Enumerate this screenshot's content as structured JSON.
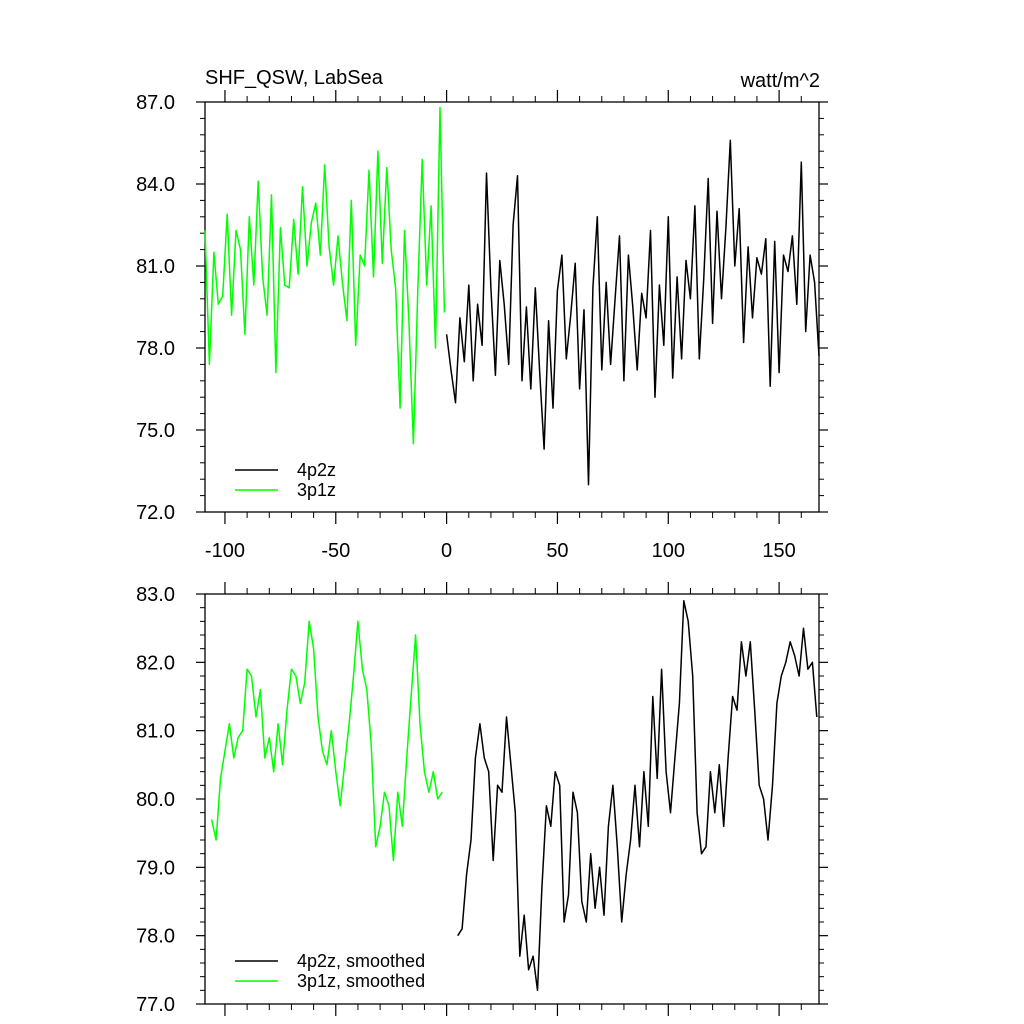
{
  "chart_data": [
    {
      "type": "line",
      "title": "SHF_QSW, LabSea",
      "units": "watt/m^2",
      "xlim": [
        -109,
        168
      ],
      "ylim": [
        72.0,
        87.0
      ],
      "xticks": [
        -100,
        -50,
        0,
        50,
        100,
        150
      ],
      "xtick_labels": [
        "-100",
        "-50",
        "0",
        "50",
        "100",
        "150"
      ],
      "yticks": [
        72,
        75,
        78,
        81,
        84,
        87
      ],
      "ytick_labels": [
        "72.0",
        "75.0",
        "78.0",
        "81.0",
        "84.0",
        "87.0"
      ],
      "grid": false,
      "legend_position": "bottom-left",
      "series": [
        {
          "name": "4p2z",
          "color": "#000000",
          "x": [
            0,
            2,
            4,
            6,
            8,
            10,
            12,
            14,
            16,
            18,
            20,
            22,
            24,
            26,
            28,
            30,
            32,
            34,
            36,
            38,
            40,
            42,
            44,
            46,
            48,
            50,
            52,
            54,
            56,
            58,
            60,
            62,
            64,
            66,
            68,
            70,
            72,
            74,
            76,
            78,
            80,
            82,
            84,
            86,
            88,
            90,
            92,
            94,
            96,
            98,
            100,
            102,
            104,
            106,
            108,
            110,
            112,
            114,
            116,
            118,
            120,
            122,
            124,
            126,
            128,
            130,
            132,
            134,
            136,
            138,
            140,
            142,
            144,
            146,
            148,
            150,
            152,
            154,
            156,
            158,
            160,
            162,
            164,
            166,
            168
          ],
          "values": [
            78.5,
            77.2,
            76.0,
            79.1,
            77.5,
            80.3,
            76.8,
            79.6,
            78.1,
            84.4,
            80.2,
            77.0,
            81.2,
            79.6,
            77.4,
            82.5,
            84.3,
            76.8,
            79.5,
            76.5,
            80.2,
            77.1,
            74.3,
            79.0,
            75.8,
            80.1,
            81.4,
            77.6,
            79.2,
            81.1,
            76.5,
            79.4,
            73.0,
            80.2,
            82.8,
            77.2,
            80.4,
            77.4,
            79.8,
            82.1,
            76.8,
            81.4,
            79.5,
            77.2,
            80.0,
            79.1,
            82.3,
            76.2,
            80.3,
            78.1,
            82.8,
            76.9,
            80.6,
            77.6,
            81.2,
            79.8,
            83.2,
            77.6,
            80.5,
            84.2,
            78.9,
            83.0,
            79.8,
            82.4,
            85.6,
            81.0,
            83.1,
            78.2,
            81.7,
            79.1,
            81.3,
            80.7,
            82.0,
            76.6,
            81.9,
            77.1,
            81.4,
            80.8,
            82.1,
            79.6,
            84.8,
            78.6,
            81.4,
            80.4,
            77.7
          ]
        },
        {
          "name": "3p1z",
          "color": "#00ff00",
          "x": [
            -109,
            -107,
            -105,
            -103,
            -101,
            -99,
            -97,
            -95,
            -93,
            -91,
            -89,
            -87,
            -85,
            -83,
            -81,
            -79,
            -77,
            -75,
            -73,
            -71,
            -69,
            -67,
            -65,
            -63,
            -61,
            -59,
            -57,
            -55,
            -53,
            -51,
            -49,
            -47,
            -45,
            -43,
            -41,
            -39,
            -37,
            -35,
            -33,
            -31,
            -29,
            -27,
            -25,
            -23,
            -21,
            -19,
            -17,
            -15,
            -13,
            -11,
            -9,
            -7,
            -5,
            -3,
            -1
          ],
          "values": [
            82.3,
            77.4,
            81.5,
            79.6,
            79.9,
            82.9,
            79.2,
            82.3,
            81.6,
            78.5,
            82.8,
            80.3,
            84.1,
            80.6,
            79.2,
            83.6,
            77.1,
            82.4,
            80.3,
            80.2,
            82.7,
            80.7,
            83.9,
            81.0,
            82.6,
            83.3,
            81.4,
            84.7,
            81.7,
            80.3,
            82.1,
            80.4,
            79.0,
            83.4,
            78.1,
            81.4,
            81.0,
            84.5,
            80.6,
            85.2,
            81.1,
            84.6,
            81.6,
            80.2,
            75.8,
            82.3,
            79.0,
            74.5,
            80.1,
            84.9,
            80.3,
            83.2,
            78.0,
            86.8,
            79.3
          ]
        }
      ]
    },
    {
      "type": "line",
      "title": "",
      "xlim": [
        -109,
        168
      ],
      "ylim": [
        77.0,
        83.0
      ],
      "xticks": [
        -100,
        -50,
        0,
        50,
        100,
        150
      ],
      "yticks": [
        77,
        78,
        79,
        80,
        81,
        82,
        83
      ],
      "ytick_labels": [
        "77.0",
        "78.0",
        "79.0",
        "80.0",
        "81.0",
        "82.0",
        "83.0"
      ],
      "grid": false,
      "legend_position": "bottom-left",
      "series": [
        {
          "name": "4p2z, smoothed",
          "color": "#000000",
          "x": [
            5,
            7,
            9,
            11,
            13,
            15,
            17,
            19,
            21,
            23,
            25,
            27,
            29,
            31,
            33,
            35,
            37,
            39,
            41,
            43,
            45,
            47,
            49,
            51,
            53,
            55,
            57,
            59,
            61,
            63,
            65,
            67,
            69,
            71,
            73,
            75,
            77,
            79,
            81,
            83,
            85,
            87,
            89,
            91,
            93,
            95,
            97,
            99,
            101,
            103,
            105,
            107,
            109,
            111,
            113,
            115,
            117,
            119,
            121,
            123,
            125,
            127,
            129,
            131,
            133,
            135,
            137,
            139,
            141,
            143,
            145,
            147,
            149,
            151,
            153,
            155,
            157,
            159,
            161,
            163,
            165,
            167
          ],
          "values": [
            78.0,
            78.1,
            78.9,
            79.4,
            80.6,
            81.1,
            80.6,
            80.4,
            79.1,
            80.2,
            80.1,
            81.2,
            80.5,
            79.8,
            77.7,
            78.3,
            77.5,
            77.7,
            77.2,
            78.7,
            79.9,
            79.6,
            80.4,
            80.2,
            78.2,
            78.6,
            80.1,
            79.8,
            78.5,
            78.2,
            79.2,
            78.4,
            79.0,
            78.3,
            79.6,
            80.2,
            79.3,
            78.2,
            78.9,
            79.4,
            80.2,
            79.3,
            80.4,
            79.6,
            81.5,
            80.3,
            81.9,
            80.4,
            79.8,
            80.6,
            81.4,
            82.9,
            82.6,
            81.8,
            79.8,
            79.2,
            79.3,
            80.4,
            79.8,
            80.5,
            79.6,
            80.6,
            81.5,
            81.3,
            82.3,
            81.8,
            82.3,
            81.3,
            80.2,
            80.0,
            79.4,
            80.2,
            81.4,
            81.8,
            82.0,
            82.3,
            82.1,
            81.8,
            82.5,
            81.9,
            82.0,
            81.2
          ]
        },
        {
          "name": "3p1z, smoothed",
          "color": "#00ff00",
          "x": [
            -106,
            -104,
            -102,
            -100,
            -98,
            -96,
            -94,
            -92,
            -90,
            -88,
            -86,
            -84,
            -82,
            -80,
            -78,
            -76,
            -74,
            -72,
            -70,
            -68,
            -66,
            -64,
            -62,
            -60,
            -58,
            -56,
            -54,
            -52,
            -50,
            -48,
            -46,
            -44,
            -42,
            -40,
            -38,
            -36,
            -34,
            -32,
            -30,
            -28,
            -26,
            -24,
            -22,
            -20,
            -18,
            -16,
            -14,
            -12,
            -10,
            -8,
            -6,
            -4,
            -2
          ],
          "values": [
            79.7,
            79.4,
            80.3,
            80.7,
            81.1,
            80.6,
            80.9,
            81.0,
            81.9,
            81.8,
            81.2,
            81.6,
            80.6,
            80.9,
            80.4,
            81.1,
            80.5,
            81.3,
            81.9,
            81.8,
            81.4,
            81.7,
            82.6,
            82.2,
            81.2,
            80.7,
            80.5,
            81.0,
            80.4,
            79.9,
            80.5,
            81.1,
            81.8,
            82.6,
            81.9,
            81.6,
            80.8,
            79.3,
            79.6,
            80.1,
            79.9,
            79.1,
            80.1,
            79.6,
            80.6,
            81.5,
            82.4,
            81.1,
            80.4,
            80.1,
            80.4,
            80.0,
            80.1
          ]
        }
      ]
    }
  ]
}
